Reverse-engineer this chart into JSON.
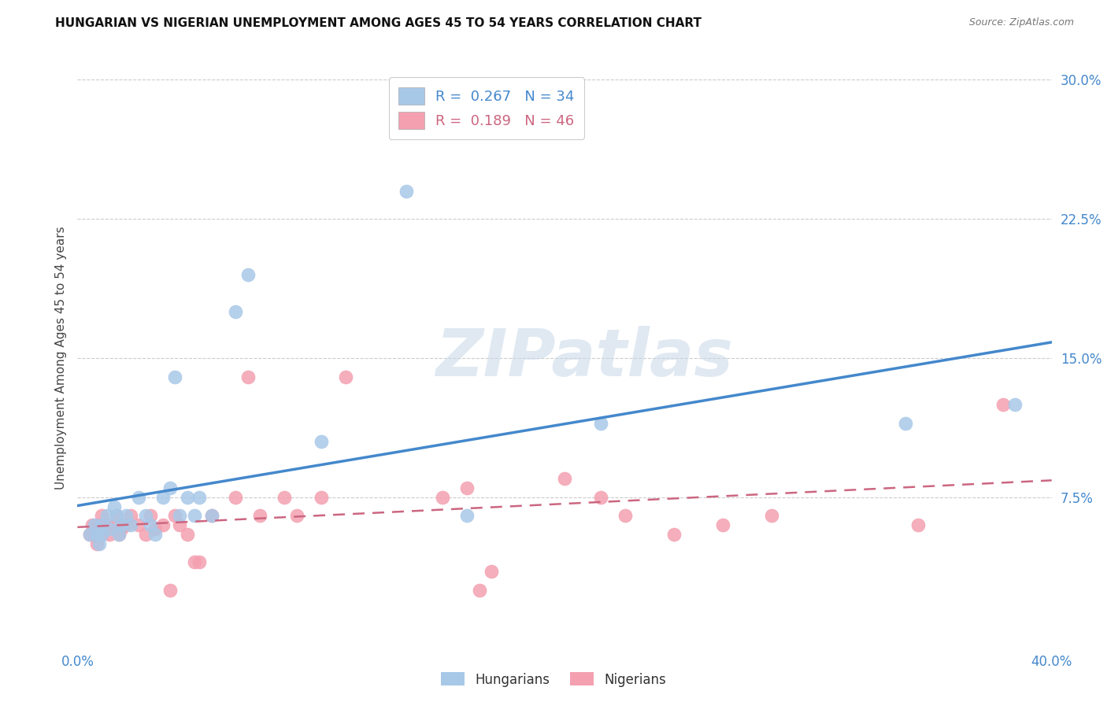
{
  "title": "HUNGARIAN VS NIGERIAN UNEMPLOYMENT AMONG AGES 45 TO 54 YEARS CORRELATION CHART",
  "source": "Source: ZipAtlas.com",
  "ylabel": "Unemployment Among Ages 45 to 54 years",
  "xlim": [
    0.0,
    0.4
  ],
  "ylim": [
    -0.005,
    0.305
  ],
  "xticks": [
    0.0,
    0.4
  ],
  "xticklabels": [
    "0.0%",
    "40.0%"
  ],
  "yticks": [
    0.075,
    0.15,
    0.225,
    0.3
  ],
  "yticklabels": [
    "7.5%",
    "15.0%",
    "22.5%",
    "30.0%"
  ],
  "legend_r_hungarian": "0.267",
  "legend_n_hungarian": "34",
  "legend_r_nigerian": "0.189",
  "legend_n_nigerian": "46",
  "blue_scatter_color": "#a8c8e8",
  "blue_line_color": "#4488cc",
  "pink_scatter_color": "#f4a0b0",
  "pink_line_color": "#cc6680",
  "background_color": "#ffffff",
  "watermark_text": "ZIPatlas",
  "hungarian_x": [
    0.005,
    0.007,
    0.008,
    0.009,
    0.01,
    0.01,
    0.012,
    0.013,
    0.015,
    0.016,
    0.017,
    0.018,
    0.02,
    0.022,
    0.025,
    0.028,
    0.03,
    0.032,
    0.035,
    0.038,
    0.04,
    0.042,
    0.045,
    0.048,
    0.05,
    0.055,
    0.065,
    0.07,
    0.1,
    0.135,
    0.16,
    0.215,
    0.34,
    0.385
  ],
  "hungarian_y": [
    0.055,
    0.06,
    0.055,
    0.05,
    0.06,
    0.055,
    0.065,
    0.058,
    0.07,
    0.065,
    0.055,
    0.06,
    0.065,
    0.06,
    0.075,
    0.065,
    0.06,
    0.055,
    0.075,
    0.08,
    0.14,
    0.065,
    0.075,
    0.065,
    0.075,
    0.065,
    0.175,
    0.195,
    0.105,
    0.24,
    0.065,
    0.115,
    0.115,
    0.125
  ],
  "nigerian_x": [
    0.005,
    0.006,
    0.007,
    0.008,
    0.009,
    0.01,
    0.01,
    0.012,
    0.013,
    0.015,
    0.016,
    0.017,
    0.018,
    0.02,
    0.022,
    0.025,
    0.028,
    0.03,
    0.032,
    0.035,
    0.038,
    0.04,
    0.042,
    0.045,
    0.048,
    0.05,
    0.055,
    0.065,
    0.07,
    0.075,
    0.085,
    0.09,
    0.1,
    0.11,
    0.15,
    0.16,
    0.165,
    0.17,
    0.2,
    0.215,
    0.225,
    0.245,
    0.265,
    0.285,
    0.345,
    0.38
  ],
  "nigerian_y": [
    0.055,
    0.06,
    0.055,
    0.05,
    0.06,
    0.055,
    0.065,
    0.06,
    0.055,
    0.06,
    0.065,
    0.055,
    0.058,
    0.06,
    0.065,
    0.06,
    0.055,
    0.065,
    0.058,
    0.06,
    0.025,
    0.065,
    0.06,
    0.055,
    0.04,
    0.04,
    0.065,
    0.075,
    0.14,
    0.065,
    0.075,
    0.065,
    0.075,
    0.14,
    0.075,
    0.08,
    0.025,
    0.035,
    0.085,
    0.075,
    0.065,
    0.055,
    0.06,
    0.065,
    0.06,
    0.125
  ]
}
